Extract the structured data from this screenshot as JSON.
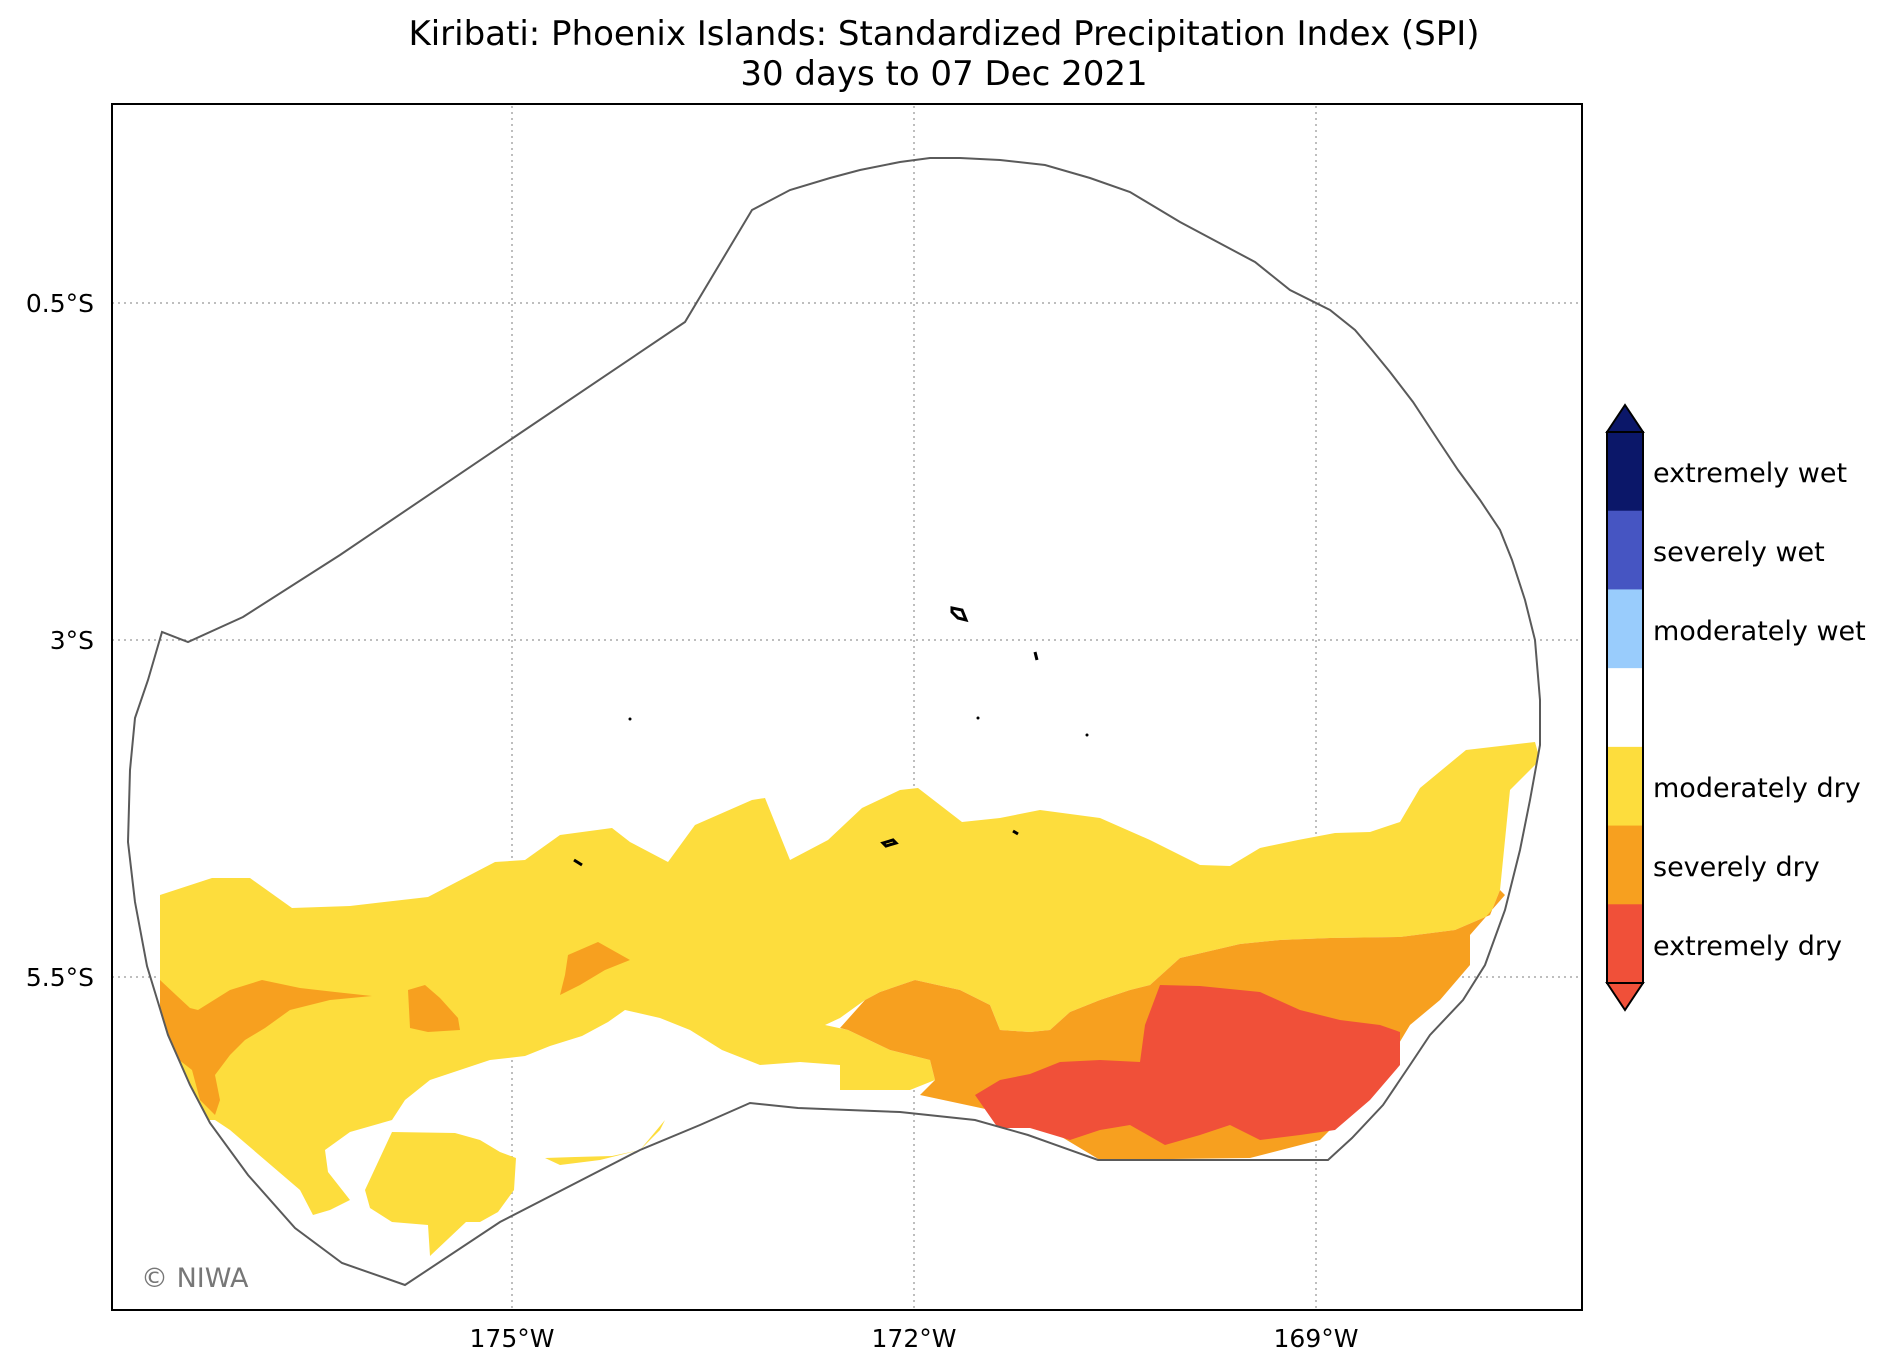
{
  "title": {
    "line1": "Kiribati: Phoenix Islands: Standardized Precipitation Index (SPI)",
    "line2": "30 days to 07 Dec 2021"
  },
  "axes": {
    "longitude_ticks": [
      "175°W",
      "172°W",
      "169°W"
    ],
    "latitude_ticks": [
      "0.5°S",
      "3°S",
      "5.5°S"
    ],
    "grid": "dotted"
  },
  "legend": {
    "items": [
      {
        "label": "extremely wet",
        "color": "#0b1769"
      },
      {
        "label": "severely wet",
        "color": "#4655c2"
      },
      {
        "label": "moderately wet",
        "color": "#99ccfc"
      },
      {
        "label": "",
        "color": "#ffffff"
      },
      {
        "label": "moderately dry",
        "color": "#fddd3d"
      },
      {
        "label": "severely dry",
        "color": "#f7a01f"
      },
      {
        "label": "extremely dry",
        "color": "#f05039"
      }
    ]
  },
  "map": {
    "spi_classes_present": [
      "moderately dry",
      "severely dry",
      "extremely dry"
    ],
    "colors": {
      "moderately_dry": "#fddd3d",
      "severely_dry": "#f7a01f",
      "extremely_dry": "#f05039",
      "eez_outline": "#5a5a5a",
      "islands": "#000000"
    }
  },
  "credit": "© NIWA"
}
